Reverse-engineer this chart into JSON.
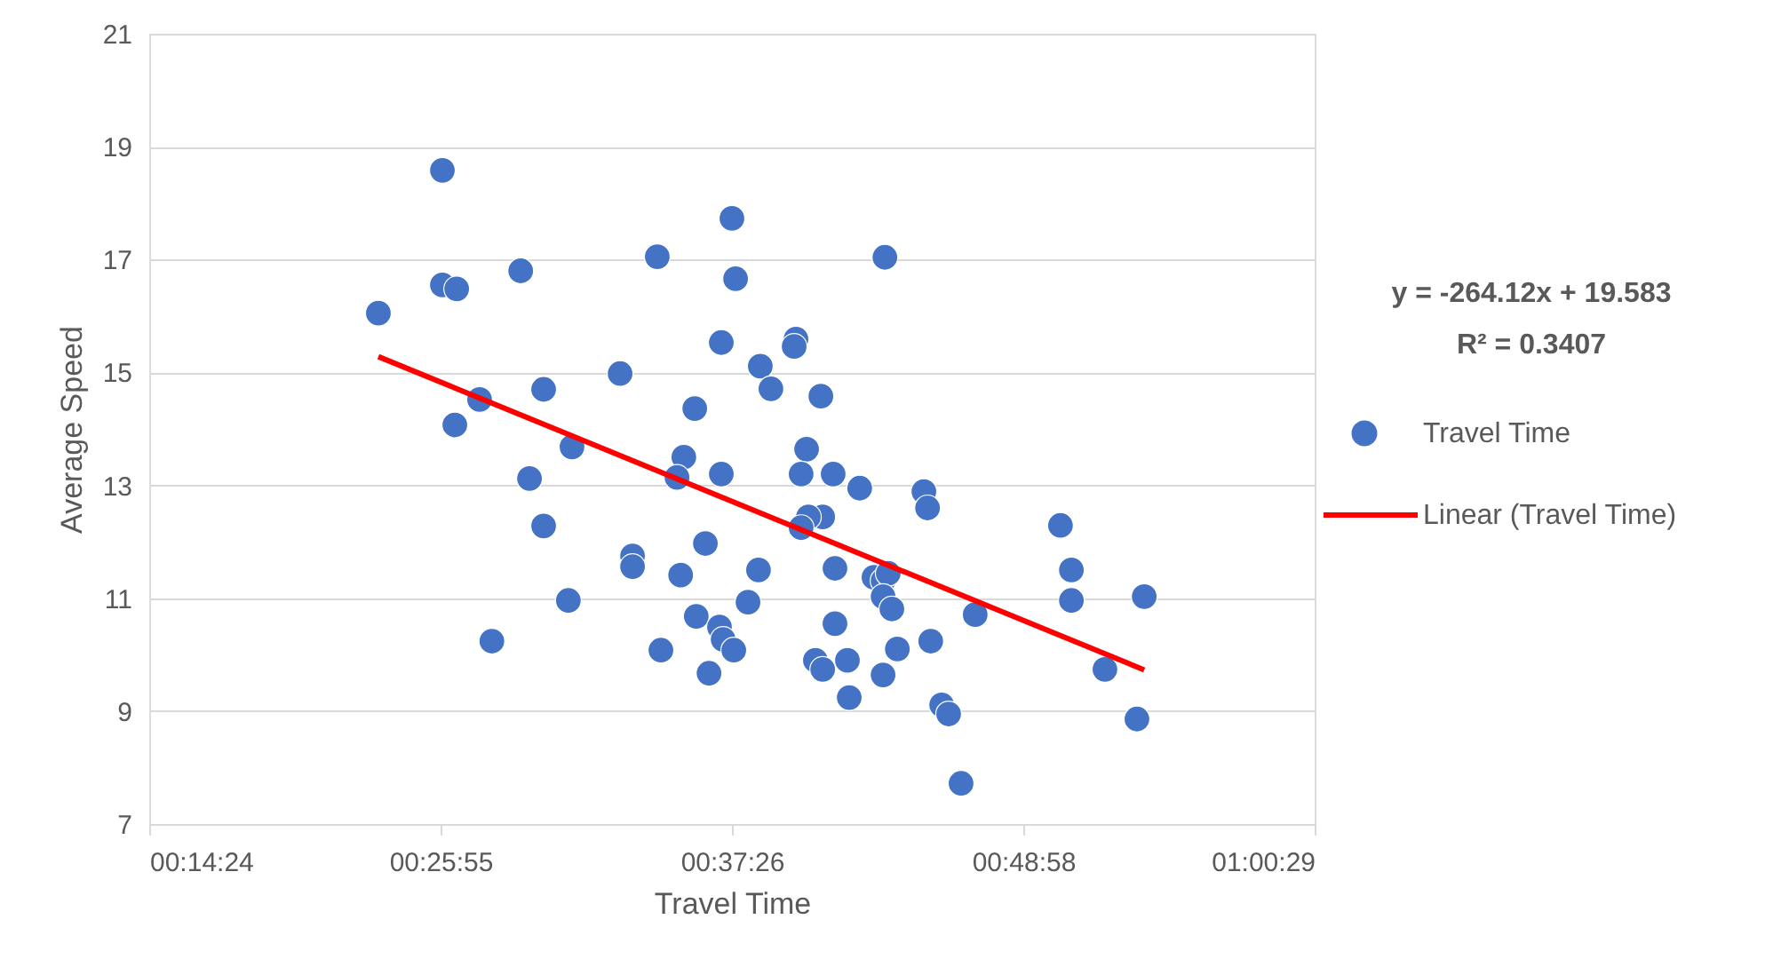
{
  "chart_data": {
    "type": "scatter",
    "xlabel": "Travel Time",
    "ylabel": "Average Speed",
    "xlim": [
      0.24,
      1.008
    ],
    "ylim": [
      7,
      21
    ],
    "xticks": [
      {
        "value": 0.24,
        "label": "00:14:24"
      },
      {
        "value": 0.432,
        "label": "00:25:55"
      },
      {
        "value": 0.624,
        "label": "00:37:26"
      },
      {
        "value": 0.816,
        "label": "00:48:58"
      },
      {
        "value": 1.008,
        "label": "01:00:29"
      }
    ],
    "yticks": [
      7,
      9,
      11,
      13,
      15,
      17,
      19,
      21
    ],
    "grid": "y",
    "legend": "right",
    "marker": "circle",
    "annotations": [
      "y = -264.12x + 19.583",
      "R² = 0.3407"
    ],
    "series": [
      {
        "name": "Travel Time",
        "color": "#4472c4",
        "x": [
          0.391,
          0.4332,
          0.4332,
          0.4426,
          0.4414,
          0.4577,
          0.4848,
          0.4999,
          0.4906,
          0.4999,
          0.5186,
          0.4658,
          0.5162,
          0.5503,
          0.5748,
          0.5585,
          0.5585,
          0.5772,
          0.5923,
          0.5878,
          0.5995,
          0.6065,
          0.5902,
          0.6005,
          0.6089,
          0.617,
          0.624,
          0.6264,
          0.617,
          0.6158,
          0.6182,
          0.6252,
          0.6427,
          0.6497,
          0.6415,
          0.6346,
          0.6662,
          0.665,
          0.6826,
          0.6732,
          0.6696,
          0.6907,
          0.6838,
          0.6744,
          0.6696,
          0.7082,
          0.7248,
          0.6919,
          0.6919,
          0.679,
          0.6838,
          0.7001,
          0.7013,
          0.7236,
          0.7176,
          0.7236,
          0.727,
          0.7236,
          0.7294,
          0.733,
          0.7505,
          0.7529,
          0.755,
          0.7622,
          0.7668,
          0.775,
          0.7843,
          0.8405,
          0.8477,
          0.8477,
          0.8698,
          0.8909,
          0.8957
        ],
        "values": [
          16.05,
          18.58,
          16.55,
          16.48,
          14.07,
          14.52,
          16.8,
          14.7,
          13.12,
          12.28,
          13.68,
          10.24,
          10.96,
          14.98,
          17.05,
          11.75,
          11.56,
          10.08,
          13.5,
          13.14,
          14.36,
          11.97,
          11.41,
          10.68,
          9.67,
          15.53,
          17.73,
          16.66,
          13.2,
          10.49,
          10.27,
          10.08,
          15.11,
          14.71,
          11.5,
          10.93,
          15.59,
          15.46,
          14.58,
          13.64,
          13.2,
          13.2,
          12.44,
          12.44,
          12.25,
          12.95,
          17.04,
          11.53,
          10.55,
          9.9,
          9.74,
          9.9,
          9.24,
          9.64,
          11.37,
          11.31,
          11.44,
          11.03,
          10.81,
          10.1,
          12.89,
          12.6,
          10.24,
          9.11,
          8.95,
          7.72,
          10.71,
          12.29,
          11.5,
          10.96,
          9.74,
          8.86,
          11.03
        ]
      },
      {
        "name": "Linear (Travel Time)",
        "type": "line",
        "color": "#ff0000",
        "line_style": "solid",
        "marker": "none",
        "x": [
          0.391,
          0.8957
        ],
        "values": [
          15.28,
          9.73
        ]
      }
    ]
  }
}
